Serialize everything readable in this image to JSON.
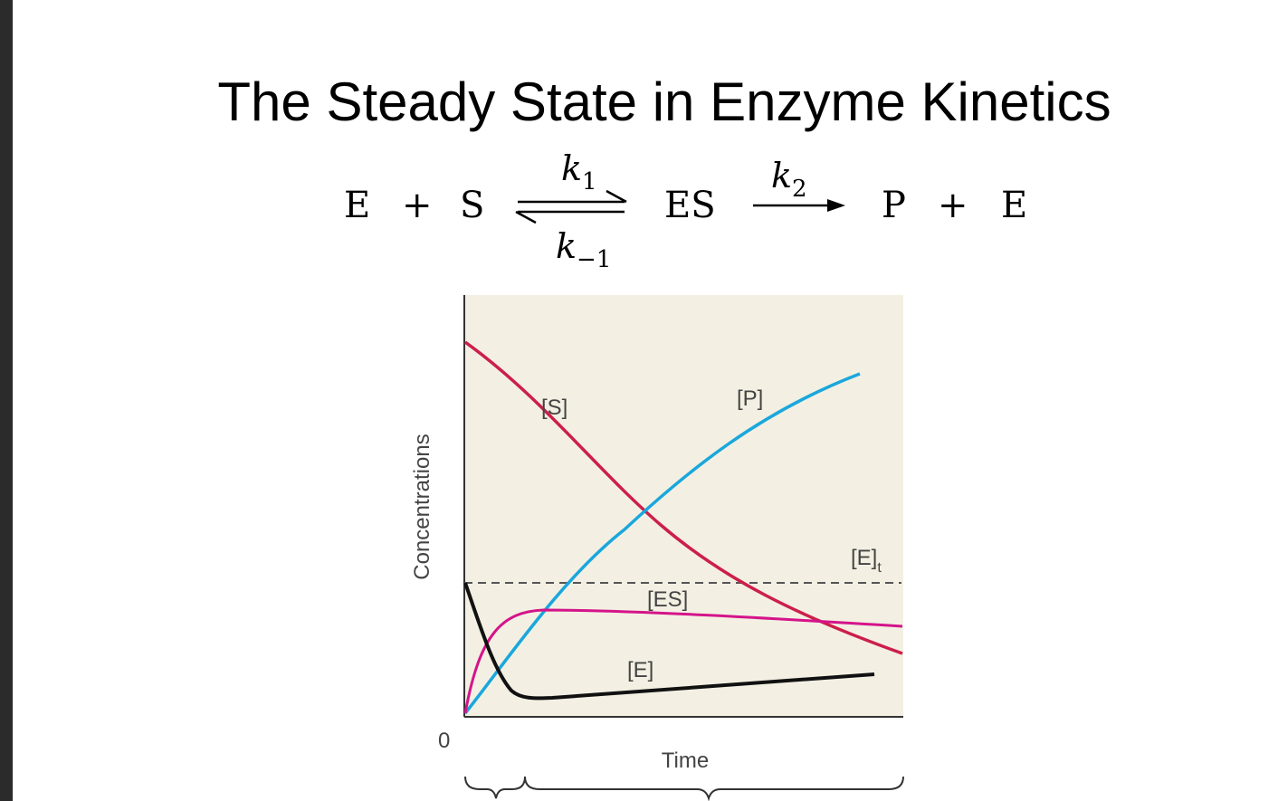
{
  "title": "The Steady State in Enzyme Kinetics",
  "equation": {
    "lhs1": "E",
    "plus1": "+",
    "lhs2": "S",
    "k1": "k",
    "k1_sub": "1",
    "km1": "k",
    "km1_sub": "−1",
    "middle": "ES",
    "k2": "k",
    "k2_sub": "2",
    "rhs1": "P",
    "plus2": "+",
    "rhs2": "E"
  },
  "graph": {
    "ylabel": "Concentrations",
    "xlabel": "Time",
    "origin": "0",
    "labels": {
      "S": "[S]",
      "P": "[P]",
      "ES": "[ES]",
      "E": "[E]",
      "Et": "[E]",
      "Et_sub": "t"
    },
    "colors": {
      "background": "#f3f0e3",
      "S": "#cc1f4a",
      "P": "#1aa7dc",
      "ES": "#d4148a",
      "E": "#111111",
      "Et": "#555555"
    }
  }
}
